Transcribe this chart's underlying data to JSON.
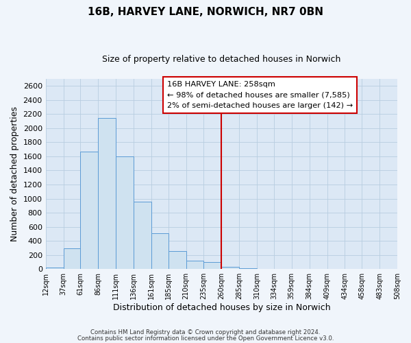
{
  "title": "16B, HARVEY LANE, NORWICH, NR7 0BN",
  "subtitle": "Size of property relative to detached houses in Norwich",
  "xlabel": "Distribution of detached houses by size in Norwich",
  "ylabel": "Number of detached properties",
  "bar_color": "#cfe2f0",
  "bar_edge_color": "#5b9bd5",
  "background_color": "#dce8f5",
  "grid_color": "#b8cde0",
  "fig_background_color": "#f0f5fb",
  "reference_line_x": 260,
  "reference_line_color": "#cc0000",
  "bin_edges": [
    12,
    37,
    61,
    86,
    111,
    136,
    161,
    185,
    210,
    235,
    260,
    285,
    310,
    334,
    359,
    384,
    409,
    434,
    458,
    483,
    508
  ],
  "bin_heights": [
    18,
    295,
    1670,
    2140,
    1600,
    960,
    505,
    255,
    115,
    100,
    30,
    12,
    5,
    3,
    2,
    1,
    0,
    0,
    1,
    0
  ],
  "annotation_title": "16B HARVEY LANE: 258sqm",
  "annotation_line1": "← 98% of detached houses are smaller (7,585)",
  "annotation_line2": "2% of semi-detached houses are larger (142) →",
  "annotation_box_color": "#ffffff",
  "annotation_border_color": "#cc0000",
  "footer_line1": "Contains HM Land Registry data © Crown copyright and database right 2024.",
  "footer_line2": "Contains public sector information licensed under the Open Government Licence v3.0.",
  "ylim": [
    0,
    2700
  ],
  "yticks": [
    0,
    200,
    400,
    600,
    800,
    1000,
    1200,
    1400,
    1600,
    1800,
    2000,
    2200,
    2400,
    2600
  ],
  "tick_labels": [
    "12sqm",
    "37sqm",
    "61sqm",
    "86sqm",
    "111sqm",
    "136sqm",
    "161sqm",
    "185sqm",
    "210sqm",
    "235sqm",
    "260sqm",
    "285sqm",
    "310sqm",
    "334sqm",
    "359sqm",
    "384sqm",
    "409sqm",
    "434sqm",
    "458sqm",
    "483sqm",
    "508sqm"
  ]
}
